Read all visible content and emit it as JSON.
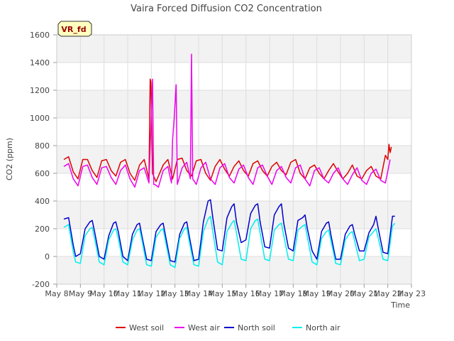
{
  "chart_data": {
    "type": "line",
    "title": "Vaira Forced Diffusion CO2 Concentration",
    "badge": "VR_fd",
    "xlabel": "Time",
    "ylabel": "CO2 (ppm)",
    "ylim": [
      -200,
      1600
    ],
    "yticks": [
      -200,
      0,
      200,
      400,
      600,
      800,
      1000,
      1200,
      1400,
      1600
    ],
    "xlim": [
      8,
      23
    ],
    "xticks": [
      8,
      9,
      10,
      11,
      12,
      13,
      14,
      15,
      16,
      17,
      18,
      19,
      20,
      21,
      22,
      23
    ],
    "xtick_labels": [
      "May 8",
      "May 9",
      "May 10",
      "May 11",
      "May 12",
      "May 13",
      "May 14",
      "May 15",
      "May 16",
      "May 17",
      "May 18",
      "May 19",
      "May 20",
      "May 21",
      "May 22",
      "May 23"
    ],
    "grid": true,
    "legend_position": "bottom",
    "series": [
      {
        "name": "West soil",
        "color": "#dd0000",
        "x": [
          8.3,
          8.5,
          8.7,
          8.9,
          9.1,
          9.3,
          9.5,
          9.7,
          9.9,
          10.1,
          10.3,
          10.5,
          10.7,
          10.9,
          11.1,
          11.3,
          11.5,
          11.7,
          11.9,
          11.95,
          11.98,
          12.05,
          12.2,
          12.5,
          12.7,
          12.9,
          13.1,
          13.3,
          13.5,
          13.7,
          13.9,
          14.1,
          14.3,
          14.5,
          14.7,
          14.9,
          15.1,
          15.3,
          15.5,
          15.7,
          15.9,
          16.1,
          16.3,
          16.5,
          16.7,
          16.9,
          17.1,
          17.3,
          17.5,
          17.7,
          17.9,
          18.1,
          18.3,
          18.5,
          18.7,
          18.9,
          19.1,
          19.3,
          19.5,
          19.7,
          19.9,
          20.1,
          20.3,
          20.5,
          20.7,
          20.9,
          21.1,
          21.3,
          21.5,
          21.7,
          21.9,
          22.0,
          22.05,
          22.1,
          22.15
        ],
        "y": [
          700,
          720,
          610,
          560,
          700,
          700,
          620,
          570,
          690,
          700,
          620,
          580,
          680,
          700,
          600,
          550,
          660,
          700,
          560,
          1280,
          1260,
          600,
          540,
          660,
          700,
          560,
          700,
          710,
          620,
          580,
          690,
          700,
          600,
          550,
          650,
          700,
          630,
          580,
          650,
          690,
          620,
          580,
          670,
          690,
          620,
          580,
          650,
          680,
          620,
          590,
          680,
          700,
          600,
          560,
          640,
          660,
          600,
          560,
          620,
          670,
          610,
          560,
          600,
          660,
          580,
          560,
          620,
          650,
          580,
          560,
          730,
          700,
          810,
          750,
          790
        ]
      },
      {
        "name": "West air",
        "color": "#ee00ee",
        "x": [
          8.3,
          8.5,
          8.7,
          8.9,
          9.1,
          9.3,
          9.5,
          9.7,
          9.9,
          10.1,
          10.3,
          10.5,
          10.7,
          10.9,
          11.1,
          11.3,
          11.5,
          11.7,
          11.9,
          12.05,
          12.1,
          12.15,
          12.3,
          12.5,
          12.7,
          12.85,
          12.9,
          12.97,
          13.05,
          13.1,
          13.3,
          13.5,
          13.65,
          13.7,
          13.75,
          13.9,
          14.1,
          14.3,
          14.5,
          14.7,
          14.9,
          15.1,
          15.3,
          15.5,
          15.7,
          15.9,
          16.1,
          16.3,
          16.5,
          16.7,
          16.9,
          17.1,
          17.3,
          17.5,
          17.7,
          17.9,
          18.1,
          18.3,
          18.5,
          18.7,
          18.9,
          19.1,
          19.3,
          19.5,
          19.7,
          19.9,
          20.1,
          20.3,
          20.5,
          20.7,
          20.9,
          21.1,
          21.3,
          21.5,
          21.7,
          21.9,
          22.1
        ],
        "y": [
          650,
          670,
          560,
          510,
          650,
          660,
          570,
          520,
          640,
          650,
          570,
          520,
          620,
          660,
          560,
          500,
          620,
          640,
          530,
          1280,
          520,
          520,
          500,
          620,
          650,
          530,
          840,
          1010,
          1240,
          520,
          640,
          680,
          560,
          1460,
          560,
          520,
          640,
          680,
          560,
          520,
          640,
          670,
          570,
          530,
          630,
          660,
          570,
          520,
          640,
          660,
          580,
          520,
          620,
          650,
          570,
          530,
          640,
          660,
          560,
          510,
          620,
          640,
          560,
          530,
          600,
          640,
          560,
          520,
          590,
          640,
          550,
          520,
          600,
          630,
          550,
          530,
          700
        ]
      },
      {
        "name": "North soil",
        "color": "#0000cc",
        "x": [
          8.3,
          8.5,
          8.6,
          8.7,
          8.8,
          9.0,
          9.2,
          9.4,
          9.5,
          9.6,
          9.8,
          10.0,
          10.2,
          10.4,
          10.5,
          10.6,
          10.8,
          11.0,
          11.2,
          11.4,
          11.5,
          11.6,
          11.8,
          12.0,
          12.2,
          12.4,
          12.5,
          12.6,
          12.8,
          13.0,
          13.2,
          13.4,
          13.5,
          13.6,
          13.8,
          14.0,
          14.2,
          14.4,
          14.5,
          14.6,
          14.8,
          15.0,
          15.2,
          15.4,
          15.5,
          15.6,
          15.8,
          16.0,
          16.2,
          16.4,
          16.5,
          16.6,
          16.8,
          17.0,
          17.2,
          17.4,
          17.5,
          17.6,
          17.8,
          18.0,
          18.2,
          18.4,
          18.5,
          18.6,
          18.8,
          19.0,
          19.2,
          19.4,
          19.5,
          19.6,
          19.8,
          20.0,
          20.2,
          20.4,
          20.5,
          20.6,
          20.8,
          21.0,
          21.2,
          21.4,
          21.5,
          21.6,
          21.8,
          22.0,
          22.2,
          22.3
        ],
        "y": [
          270,
          280,
          180,
          80,
          0,
          20,
          200,
          250,
          260,
          180,
          0,
          -20,
          150,
          240,
          250,
          180,
          0,
          -30,
          160,
          230,
          240,
          150,
          -20,
          -30,
          180,
          230,
          240,
          150,
          -30,
          -40,
          160,
          240,
          250,
          150,
          -30,
          -20,
          250,
          400,
          410,
          280,
          50,
          40,
          280,
          360,
          380,
          250,
          100,
          120,
          310,
          370,
          380,
          250,
          70,
          60,
          300,
          360,
          380,
          240,
          60,
          40,
          260,
          280,
          300,
          200,
          40,
          -20,
          180,
          240,
          250,
          150,
          -20,
          -20,
          160,
          220,
          230,
          160,
          40,
          40,
          170,
          230,
          290,
          200,
          30,
          20,
          290,
          290
        ]
      },
      {
        "name": "North air",
        "color": "#00eeee",
        "x": [
          8.3,
          8.5,
          8.6,
          8.7,
          8.8,
          9.0,
          9.2,
          9.4,
          9.5,
          9.6,
          9.8,
          10.0,
          10.2,
          10.4,
          10.5,
          10.6,
          10.8,
          11.0,
          11.2,
          11.4,
          11.5,
          11.6,
          11.8,
          12.0,
          12.2,
          12.4,
          12.5,
          12.6,
          12.8,
          13.0,
          13.2,
          13.4,
          13.5,
          13.6,
          13.8,
          14.0,
          14.2,
          14.4,
          14.5,
          14.6,
          14.8,
          15.0,
          15.2,
          15.4,
          15.5,
          15.6,
          15.8,
          16.0,
          16.2,
          16.4,
          16.5,
          16.6,
          16.8,
          17.0,
          17.2,
          17.4,
          17.5,
          17.6,
          17.8,
          18.0,
          18.2,
          18.4,
          18.5,
          18.6,
          18.8,
          19.0,
          19.2,
          19.4,
          19.5,
          19.6,
          19.8,
          20.0,
          20.2,
          20.4,
          20.5,
          20.6,
          20.8,
          21.0,
          21.2,
          21.4,
          21.5,
          21.6,
          21.8,
          22.0,
          22.2,
          22.3
        ],
        "y": [
          210,
          230,
          130,
          30,
          -40,
          -50,
          150,
          200,
          210,
          130,
          -40,
          -60,
          120,
          190,
          200,
          130,
          -40,
          -60,
          120,
          190,
          200,
          120,
          -60,
          -70,
          140,
          190,
          200,
          110,
          -60,
          -80,
          130,
          200,
          210,
          110,
          -60,
          -70,
          180,
          270,
          290,
          180,
          -40,
          -60,
          180,
          240,
          260,
          170,
          -20,
          -30,
          200,
          260,
          270,
          170,
          -20,
          -30,
          190,
          230,
          240,
          150,
          -20,
          -30,
          190,
          220,
          230,
          140,
          -40,
          -60,
          130,
          180,
          190,
          110,
          -50,
          -60,
          120,
          170,
          180,
          110,
          -30,
          -20,
          140,
          180,
          200,
          130,
          -20,
          -30,
          220,
          240
        ]
      }
    ]
  }
}
